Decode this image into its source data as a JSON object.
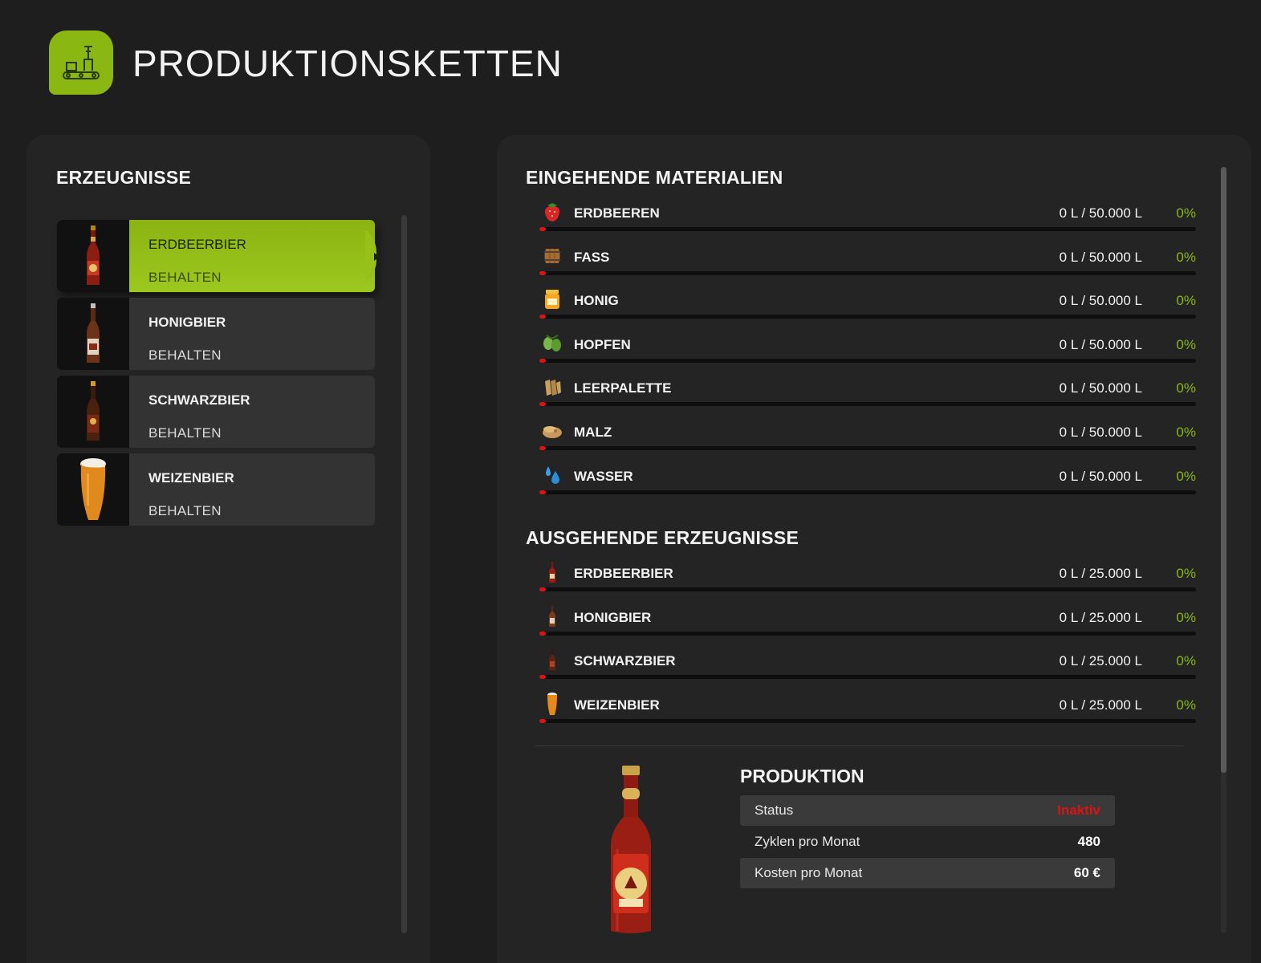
{
  "header": {
    "title": "PRODUKTIONSKETTEN",
    "icon": "production-line-icon"
  },
  "colors": {
    "accent": "#8bb713",
    "bar_fill": "#d91414",
    "inactive": "#d91414"
  },
  "products": {
    "title": "ERZEUGNISSE",
    "items": [
      {
        "name": "ERDBEERBIER",
        "status": "BEHALTEN",
        "icon": "strawberry-beer-bottle-icon",
        "selected": true
      },
      {
        "name": "HONIGBIER",
        "status": "BEHALTEN",
        "icon": "honey-beer-bottle-icon",
        "selected": false
      },
      {
        "name": "SCHWARZBIER",
        "status": "BEHALTEN",
        "icon": "dark-beer-bottle-icon",
        "selected": false
      },
      {
        "name": "WEIZENBIER",
        "status": "BEHALTEN",
        "icon": "wheat-beer-glass-icon",
        "selected": false
      }
    ]
  },
  "incoming": {
    "title": "EINGEHENDE MATERIALIEN",
    "items": [
      {
        "name": "ERDBEEREN",
        "amount": "0 L / 50.000 L",
        "percent": "0%",
        "fill": 0,
        "icon": "strawberry-icon"
      },
      {
        "name": "FASS",
        "amount": "0 L / 50.000 L",
        "percent": "0%",
        "fill": 0,
        "icon": "barrel-icon"
      },
      {
        "name": "HONIG",
        "amount": "0 L / 50.000 L",
        "percent": "0%",
        "fill": 0,
        "icon": "honey-jar-icon"
      },
      {
        "name": "HOPFEN",
        "amount": "0 L / 50.000 L",
        "percent": "0%",
        "fill": 0,
        "icon": "hops-icon"
      },
      {
        "name": "LEERPALETTE",
        "amount": "0 L / 50.000 L",
        "percent": "0%",
        "fill": 0,
        "icon": "empty-pallet-icon"
      },
      {
        "name": "MALZ",
        "amount": "0 L / 50.000 L",
        "percent": "0%",
        "fill": 0,
        "icon": "malt-icon"
      },
      {
        "name": "WASSER",
        "amount": "0 L / 50.000 L",
        "percent": "0%",
        "fill": 0,
        "icon": "water-drop-icon"
      }
    ]
  },
  "outgoing": {
    "title": "AUSGEHENDE ERZEUGNISSE",
    "items": [
      {
        "name": "ERDBEERBIER",
        "amount": "0 L / 25.000 L",
        "percent": "0%",
        "fill": 0,
        "icon": "strawberry-beer-bottle-icon"
      },
      {
        "name": "HONIGBIER",
        "amount": "0 L / 25.000 L",
        "percent": "0%",
        "fill": 0,
        "icon": "honey-beer-bottle-icon"
      },
      {
        "name": "SCHWARZBIER",
        "amount": "0 L / 25.000 L",
        "percent": "0%",
        "fill": 0,
        "icon": "dark-beer-bottle-icon"
      },
      {
        "name": "WEIZENBIER",
        "amount": "0 L / 25.000 L",
        "percent": "0%",
        "fill": 0,
        "icon": "wheat-beer-glass-icon"
      }
    ]
  },
  "production": {
    "title": "PRODUKTION",
    "image": "strawberry-beer-bottle-image",
    "rows": [
      {
        "label": "Status",
        "value": "Inaktiv"
      },
      {
        "label": "Zyklen pro Monat",
        "value": "480"
      },
      {
        "label": "Kosten pro Monat",
        "value": "60 €"
      }
    ]
  }
}
